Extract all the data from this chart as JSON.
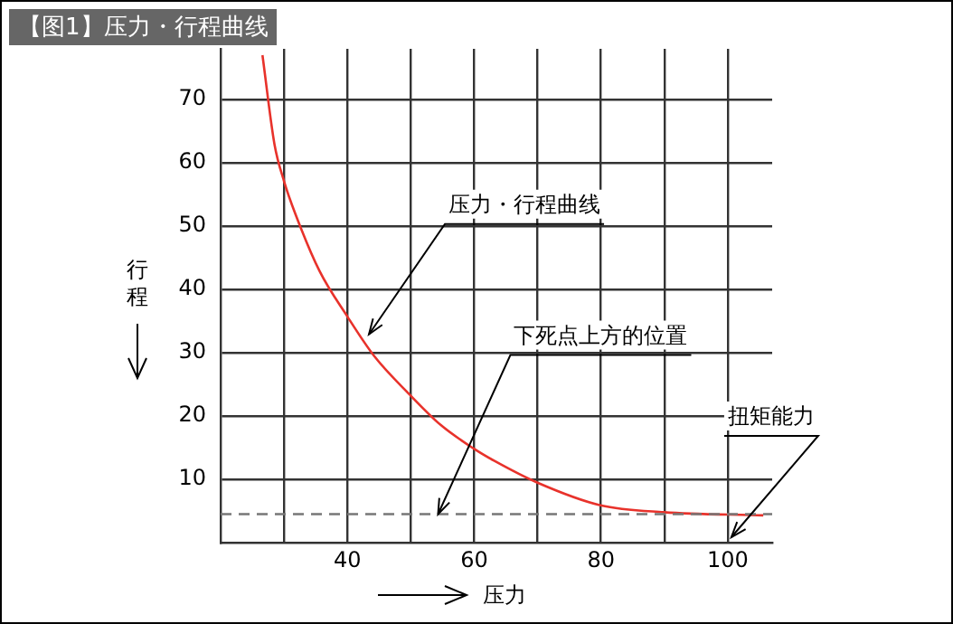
{
  "chart_data": {
    "type": "line",
    "title": "【图1】压力・行程曲线",
    "xlabel": "压力",
    "ylabel": "行程",
    "x": [
      26.6,
      28.5,
      30,
      31.8,
      35.6,
      40,
      44.2,
      49.9,
      54.7,
      60,
      63.2,
      69.9,
      79.9,
      89.9,
      105.6
    ],
    "series": [
      {
        "color": "#e8322b",
        "values": [
          77,
          62.9,
          57.1,
          51.9,
          42.9,
          35.7,
          29.5,
          23.3,
          18.6,
          14.8,
          12.9,
          9.5,
          5.9,
          4.8,
          4.3
        ]
      }
    ],
    "xlim": [
      20,
      107
    ],
    "ylim": [
      0,
      78
    ],
    "xticks": [
      {
        "value": 30,
        "label": null
      },
      40,
      {
        "value": 50,
        "label": null
      },
      60,
      {
        "value": 70,
        "label": null
      },
      80,
      {
        "value": 90,
        "label": null
      },
      100
    ],
    "yticks": [
      10,
      20,
      30,
      40,
      50,
      60,
      70
    ],
    "grid": true,
    "marker": "none",
    "line_style": "solid",
    "ref_lines": [
      {
        "axis": "y",
        "value": 4.5,
        "color": "#777777",
        "line_style": "dashed"
      }
    ],
    "annotations": [
      {
        "text": "压力・行程曲线",
        "x": 43.4,
        "y": 32.9
      },
      {
        "text": "下死点上方的位置",
        "x": 54.3,
        "y": 4.5
      },
      "扭矩能力"
    ]
  }
}
